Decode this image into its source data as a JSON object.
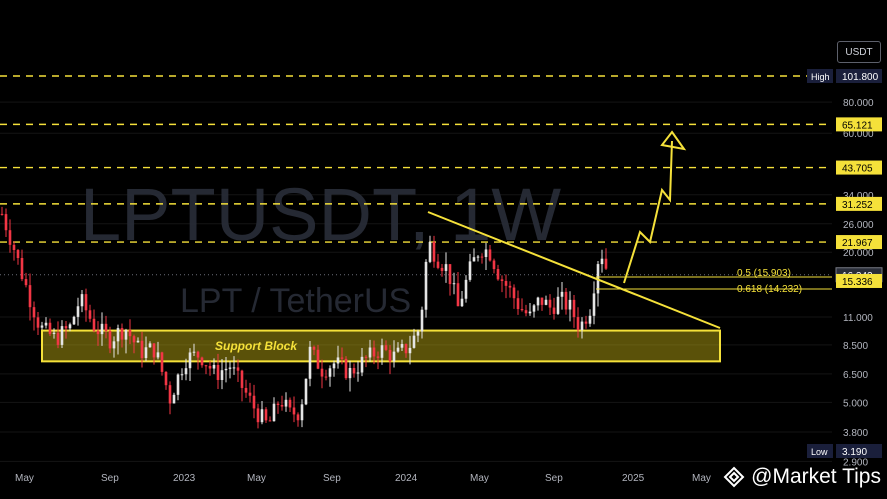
{
  "app": {
    "symbol_title": "LPTUSDT, 1W",
    "pair_subtitle": "LPT / TetherUS",
    "quote_unit": "USDT",
    "brand": "@Market Tips",
    "brand_icon": "market-tips-logo-icon"
  },
  "colors": {
    "background": "#000000",
    "accent_yellow": "#f5e13a",
    "up_candle": "#e5e5e5",
    "down_candle": "#f23645",
    "grid": "#141414"
  },
  "chart_data": {
    "type": "candlestick",
    "interval": "1W",
    "scale": "log",
    "ylim": [
      2.6,
      130
    ],
    "y_tick_labels": [
      "80.000",
      "60.000",
      "34.000",
      "26.000",
      "20.000",
      "11.000",
      "8.500",
      "6.500",
      "5.000",
      "3.800",
      "2.900"
    ],
    "x_tick_labels": [
      "May",
      "Sep",
      "2023",
      "May",
      "Sep",
      "2024",
      "May",
      "Sep",
      "2025",
      "May"
    ],
    "price_tags": [
      {
        "label": "High",
        "value": "101.800"
      },
      {
        "value": "65.121"
      },
      {
        "value": "43.705"
      },
      {
        "value": "31.252"
      },
      {
        "value": "21.967"
      },
      {
        "value": "16.242"
      },
      {
        "value": "15.336"
      },
      {
        "label": "Low",
        "value": "3.190"
      }
    ],
    "resistance_levels": [
      101.8,
      65.121,
      43.705,
      31.252,
      21.967
    ],
    "fib_levels": [
      {
        "label": "0.5 (15.903)",
        "value": 15.903
      },
      {
        "label": "0.618 (14.232)",
        "value": 14.232
      }
    ],
    "current_price": 16.242,
    "support_block": {
      "label": "Support Block",
      "low": 7.3,
      "high": 9.7
    },
    "annotations": [
      "descending trendline",
      "projected breakout path"
    ]
  }
}
